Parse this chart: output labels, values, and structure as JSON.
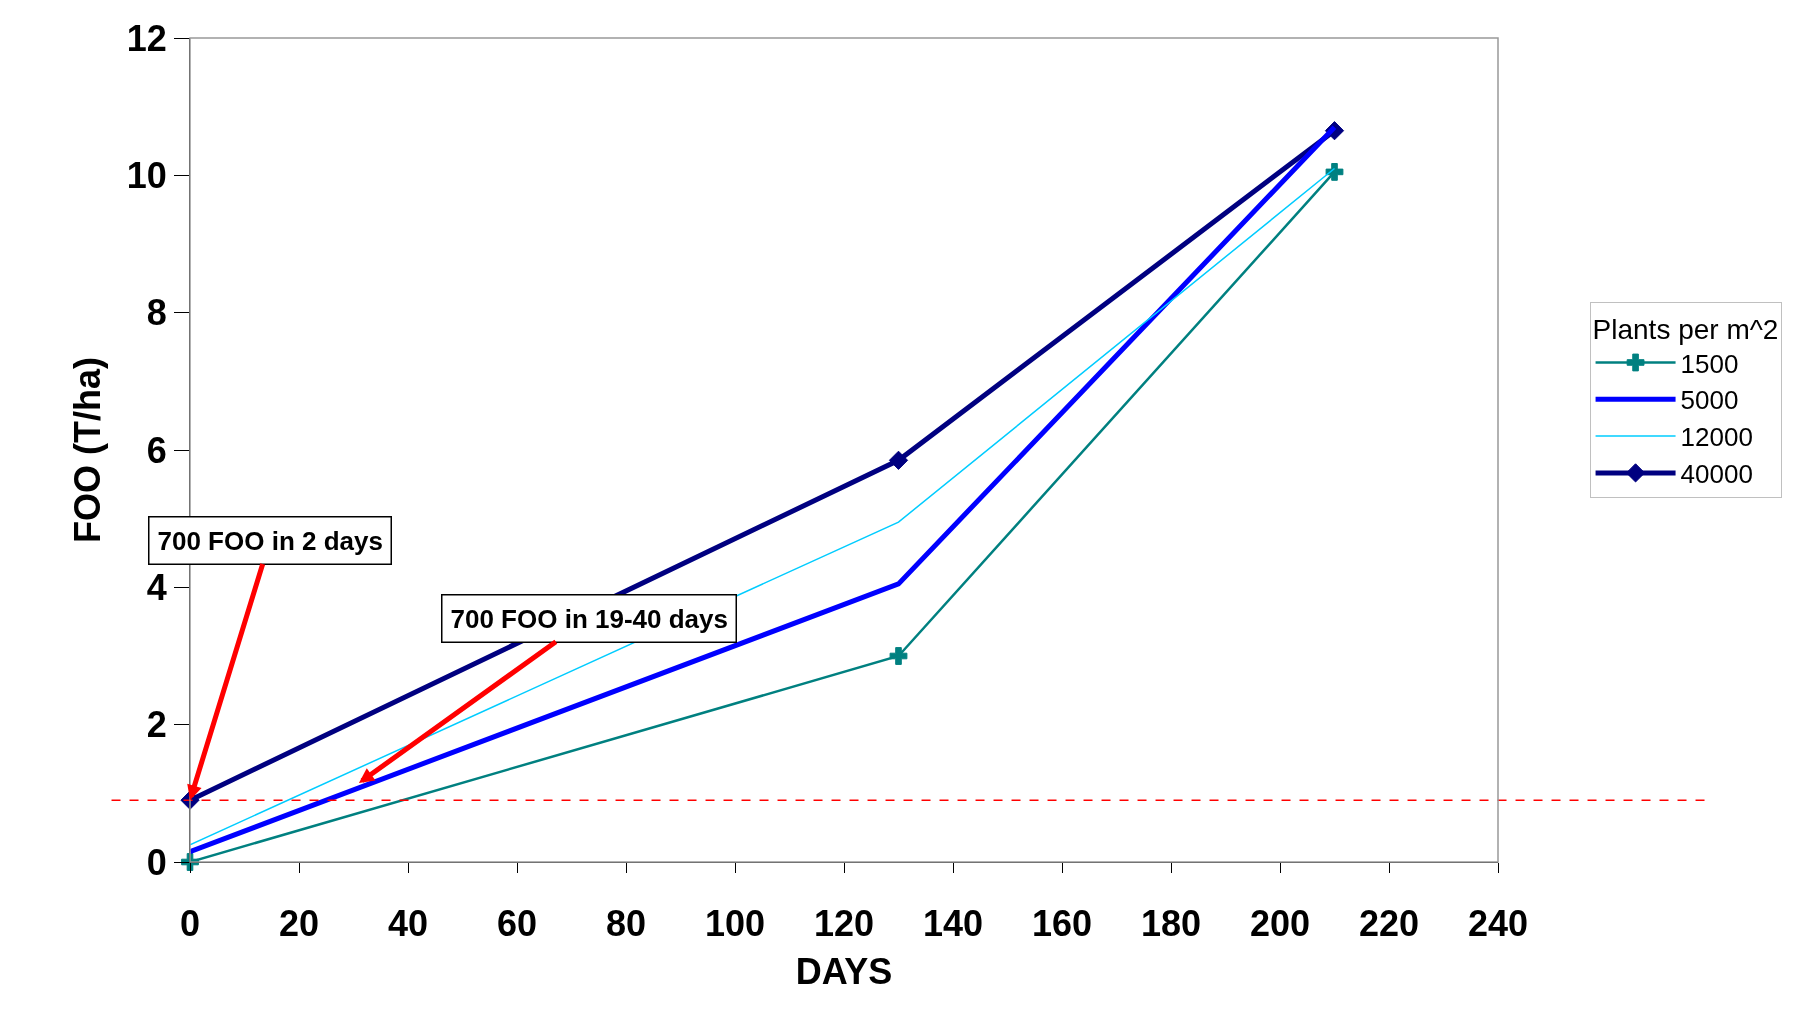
{
  "chart_data": {
    "type": "line",
    "xlabel": "DAYS",
    "ylabel": "FOO (T/ha)",
    "legend_title": "Plants per m^2",
    "x": [
      0,
      130,
      210
    ],
    "series": [
      {
        "name": "1500",
        "color": "#008080",
        "marker": "cross",
        "values": [
          0,
          3.0,
          10.05
        ]
      },
      {
        "name": "5000",
        "color": "#0000ff",
        "values": [
          0.15,
          4.05,
          10.7
        ]
      },
      {
        "name": "12000",
        "color": "#00ccff",
        "values": [
          0.25,
          4.95,
          10.1
        ]
      },
      {
        "name": "40000",
        "color": "#000080",
        "marker": "diamond",
        "values": [
          0.9,
          5.85,
          10.65
        ]
      }
    ],
    "xlim": [
      0,
      240
    ],
    "xticks": [
      0,
      20,
      40,
      60,
      80,
      100,
      120,
      140,
      160,
      180,
      200,
      220,
      240
    ],
    "ylim": [
      0,
      12
    ],
    "yticks": [
      0,
      2,
      4,
      6,
      8,
      10,
      12
    ],
    "ref_lines": [
      {
        "axis": "y",
        "value": 0.9,
        "color": "#ff0000",
        "line_style": "dashed"
      }
    ],
    "annotations": [
      {
        "text": "700 FOO in 2 days",
        "x": 0,
        "y": 0.9
      },
      {
        "text": "700 FOO in 19-40 days",
        "x": 31,
        "y": 1.15
      }
    ],
    "legend": "right"
  }
}
